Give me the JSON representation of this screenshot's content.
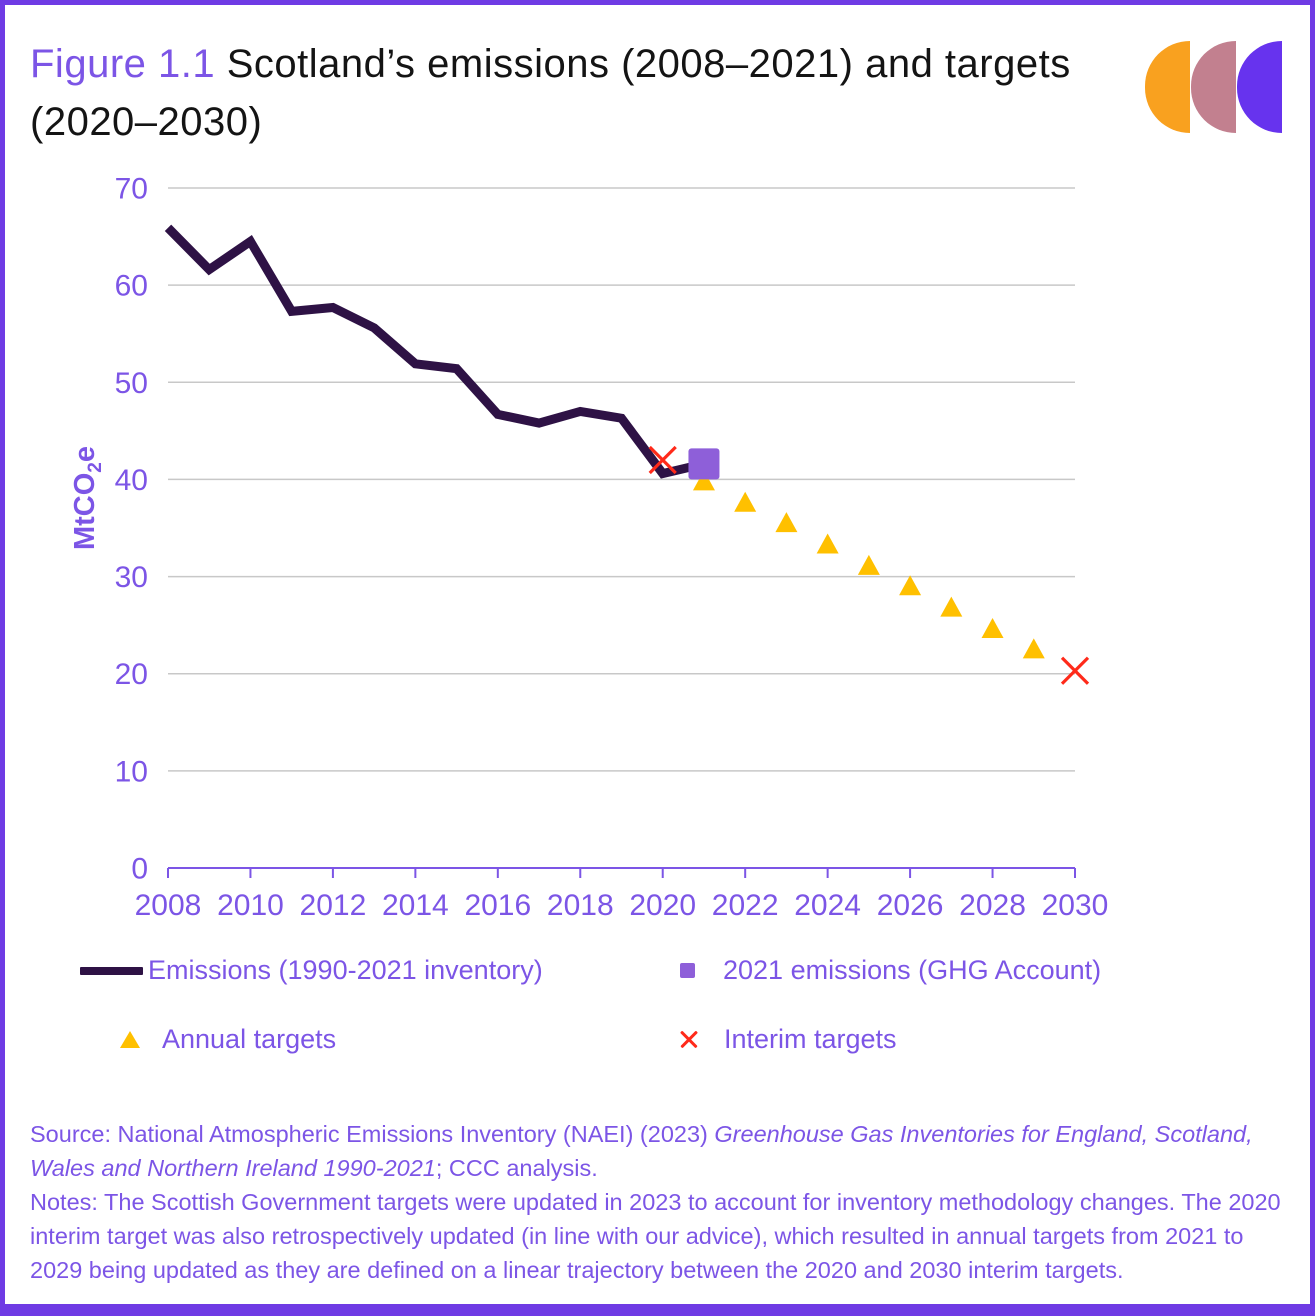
{
  "figure": {
    "label": "Figure 1.1",
    "title_rest": " Scotland’s emissions (2008–2021) and targets (2020–2030)"
  },
  "logo": {
    "name": "ccc-logo",
    "colors": [
      "#F9A11F",
      "#C2808F",
      "#6733EE"
    ]
  },
  "chart_data": {
    "type": "line",
    "title": "Figure 1.1 Scotland’s emissions (2008–2021) and targets (2020–2030)",
    "xlabel": "",
    "ylabel": "MtCO2e",
    "ylabel_parts": {
      "prefix": "MtCO",
      "sub": "2",
      "suffix": "e"
    },
    "grid": true,
    "legend_position": "bottom",
    "x_axis": {
      "min": 2008,
      "max": 2030,
      "tick_step": 2,
      "tick_labels": [
        "2008",
        "2010",
        "2012",
        "2014",
        "2016",
        "2018",
        "2020",
        "2022",
        "2024",
        "2026",
        "2028",
        "2030"
      ]
    },
    "y_axis": {
      "min": 0,
      "max": 70,
      "step": 10,
      "tick_labels": [
        "0",
        "10",
        "20",
        "30",
        "40",
        "50",
        "60",
        "70"
      ]
    },
    "colors": {
      "grid": "#C8C8C8",
      "axis": "#7C55E6",
      "tick_text": "#7C55E6"
    },
    "series": [
      {
        "name": "Emissions (1990-2021 inventory)",
        "marker": "line",
        "color": "#2E1245",
        "x": [
          2008,
          2009,
          2010,
          2011,
          2012,
          2013,
          2014,
          2015,
          2016,
          2017,
          2018,
          2019,
          2020,
          2021
        ],
        "values": [
          65.9,
          61.6,
          64.5,
          57.3,
          57.7,
          55.6,
          51.9,
          51.4,
          46.7,
          45.8,
          47.0,
          46.3,
          40.6,
          41.6
        ]
      },
      {
        "name": "2021 emissions (GHG Account)",
        "marker": "square",
        "color": "#8E5FD9",
        "x": [
          2021
        ],
        "values": [
          41.6
        ]
      },
      {
        "name": "Annual targets",
        "marker": "triangle",
        "color": "#FFC000",
        "x": [
          2021,
          2022,
          2023,
          2024,
          2025,
          2026,
          2027,
          2028,
          2029
        ],
        "values": [
          39.8,
          37.6,
          35.5,
          33.3,
          31.1,
          29.0,
          26.8,
          24.6,
          22.5
        ]
      },
      {
        "name": "Interim targets",
        "marker": "x",
        "color": "#FF2A1A",
        "x": [
          2020,
          2030
        ],
        "values": [
          42.0,
          20.3
        ]
      }
    ]
  },
  "legend": {
    "items": [
      {
        "label": "Emissions (1990-2021 inventory)",
        "series": 0
      },
      {
        "label": "2021 emissions (GHG Account)",
        "series": 1
      },
      {
        "label": "Annual targets",
        "series": 2
      },
      {
        "label": "Interim targets",
        "series": 3
      }
    ]
  },
  "footer": {
    "source_prefix": "Source: National Atmospheric Emissions Inventory (NAEI) (2023) ",
    "source_italic": "Greenhouse Gas Inventories for England, Scotland, Wales and Northern Ireland 1990-2021",
    "source_suffix": "; CCC analysis.",
    "notes": "Notes: The Scottish Government targets were updated in 2023 to account for inventory methodology changes. The 2020 interim target was also retrospectively updated (in line with our advice), which resulted in annual targets from 2021 to 2029 being updated as they are defined on a linear trajectory between the 2020 and 2030 interim targets."
  }
}
